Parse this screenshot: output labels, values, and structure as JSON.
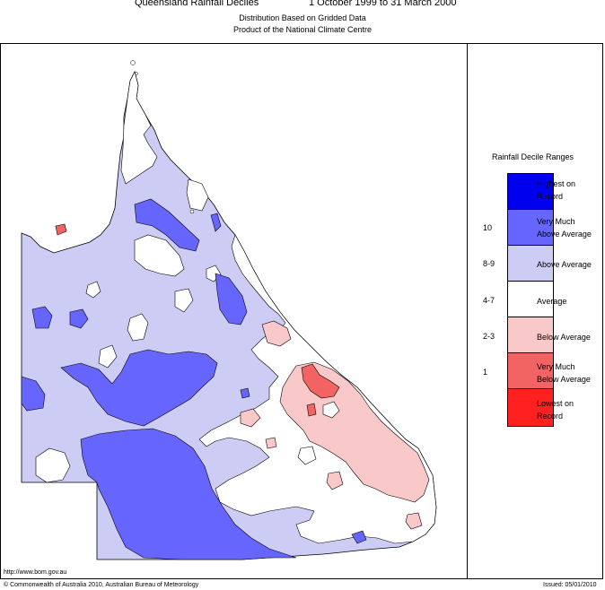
{
  "header": {
    "title_left": "Queensland Rainfall Deciles",
    "title_right": "1 October 1999 to 31 March 2000",
    "subtitle_1": "Distribution Based on Gridded Data",
    "subtitle_2": "Product of the National Climate Centre"
  },
  "legend": {
    "title": "Rainfall Decile Ranges",
    "items": [
      {
        "label": "Highest on Record",
        "range": "",
        "color": "#0000ee"
      },
      {
        "label": "Very Much Above Average",
        "range": "10",
        "color": "#6666ff"
      },
      {
        "label": "Above Average",
        "range": "8-9",
        "color": "#ccccf5"
      },
      {
        "label": "Average",
        "range": "4-7",
        "color": "#ffffff"
      },
      {
        "label": "Below Average",
        "range": "2-3",
        "color": "#f9c8c8"
      },
      {
        "label": "Very Much Below Average",
        "range": "1",
        "color": "#f26464"
      },
      {
        "label": "Lowest on Record",
        "range": "",
        "color": "#ff2020"
      }
    ],
    "label_lines": [
      [
        "Highest on",
        "Record"
      ],
      [
        "Very Much",
        "Above Average"
      ],
      [
        "Above Average"
      ],
      [
        "Average"
      ],
      [
        "Below Average"
      ],
      [
        "Very Much",
        "Below Average"
      ],
      [
        "Lowest on",
        "Record"
      ]
    ]
  },
  "footer": {
    "url": "http://www.bom.gov.au",
    "copyright": "© Commonwealth of Australia 2010, Australian Bureau of Meteorology",
    "issued": "Issued: 05/01/2010"
  }
}
